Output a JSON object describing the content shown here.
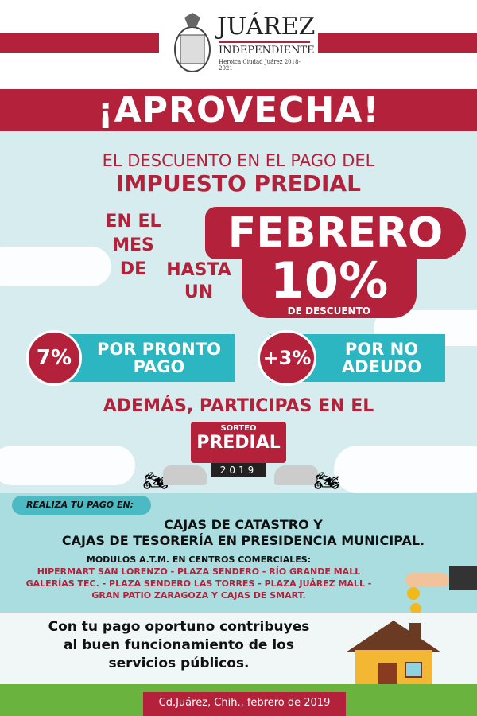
{
  "header": {
    "logo_title": "JUÁREZ",
    "logo_subtitle": "INDEPENDIENTE",
    "logo_tagline": "Heroica Ciudad Juárez 2018-2021"
  },
  "banner": "¡APROVECHA!",
  "intro": {
    "line1": "EL DESCUENTO EN EL PAGO DEL",
    "line2": "IMPUESTO PREDIAL"
  },
  "month": {
    "prefix1": "EN EL",
    "prefix2": "MES DE",
    "month": "FEBRERO"
  },
  "discount": {
    "prefix1": "HASTA",
    "prefix2": "UN",
    "value": "10%",
    "suffix": "DE DESCUENTO"
  },
  "offers": [
    {
      "percent": "7%",
      "line1": "POR PRONTO",
      "line2": "PAGO"
    },
    {
      "percent": "+3%",
      "line1": "POR NO",
      "line2": "ADEUDO"
    }
  ],
  "raffle": {
    "intro": "ADEMÁS, PARTICIPAS EN EL",
    "small": "SORTEO",
    "big": "PREDIAL",
    "year": "2019"
  },
  "payment": {
    "pill": "REALIZA TU PAGO EN:",
    "line1": "CAJAS DE CATASTRO Y",
    "line2": "CAJAS DE TESORERÍA EN PRESIDENCIA MUNICIPAL.",
    "modules_title": "MÓDULOS A.T.M. EN CENTROS COMERCIALES:",
    "modules": [
      "HIPERMART SAN LORENZO - PLAZA SENDERO - RÍO GRANDE MALL",
      "GALERÍAS TEC. - PLAZA SENDERO LAS TORRES  - PLAZA JUÁREZ MALL -",
      "GRAN PATIO ZARAGOZA Y CAJAS DE SMART."
    ]
  },
  "closing": [
    "Con tu pago oportuno contribuyes",
    "al buen  funcionamiento de los",
    "servicios públicos."
  ],
  "footer": "Cd.Juárez, Chih., febrero de 2019",
  "colors": {
    "red": "#b4213a",
    "teal": "#2cb6c1",
    "sky": "#d6ecee"
  }
}
